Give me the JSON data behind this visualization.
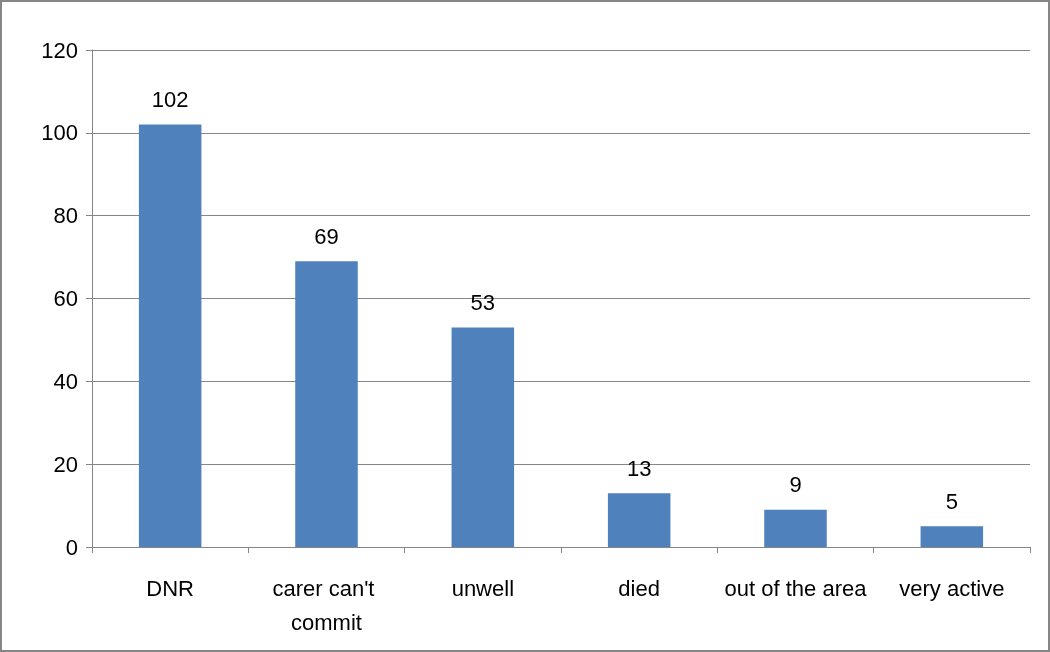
{
  "chart_data": {
    "type": "bar",
    "categories": [
      "DNR",
      "carer can't commit",
      "unwell",
      "died",
      "out of the area",
      "very active"
    ],
    "values": [
      102,
      69,
      53,
      13,
      9,
      5
    ],
    "color": "#4f81bd",
    "ylim": [
      0,
      120
    ],
    "yticks": [
      0,
      20,
      40,
      60,
      80,
      100,
      120
    ],
    "grid": "y",
    "data_labels": true
  }
}
